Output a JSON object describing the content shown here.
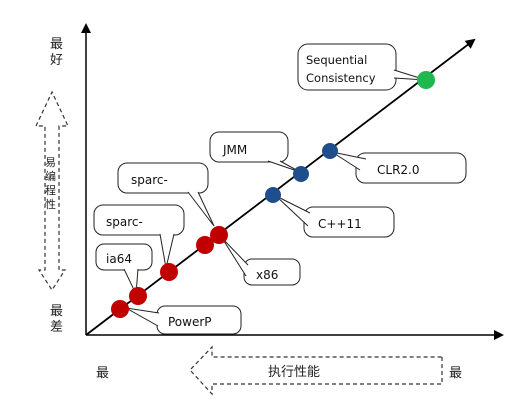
{
  "y_axis": {
    "top_label_line1": "最",
    "top_label_line2": "好",
    "bottom_label_line1": "最",
    "bottom_label_line2": "差",
    "arrow_text": [
      "易",
      "编",
      "程",
      "性"
    ]
  },
  "x_axis": {
    "left_label": "最",
    "right_label": "最",
    "arrow_text": "执行性能"
  },
  "callouts": {
    "sequential": [
      "Sequential",
      "Consistency"
    ],
    "jmm": "JMM",
    "clr": "CLR2.0",
    "cpp": "C++11",
    "sparc_upper": "sparc-",
    "sparc_lower": "sparc-",
    "ia64": "ia64",
    "x86": "x86",
    "powerp": "PowerP"
  },
  "colors": {
    "red_point": "#c00000",
    "blue_point": "#1f4e8c",
    "green_point": "#1fb84f",
    "line": "#000000"
  }
}
